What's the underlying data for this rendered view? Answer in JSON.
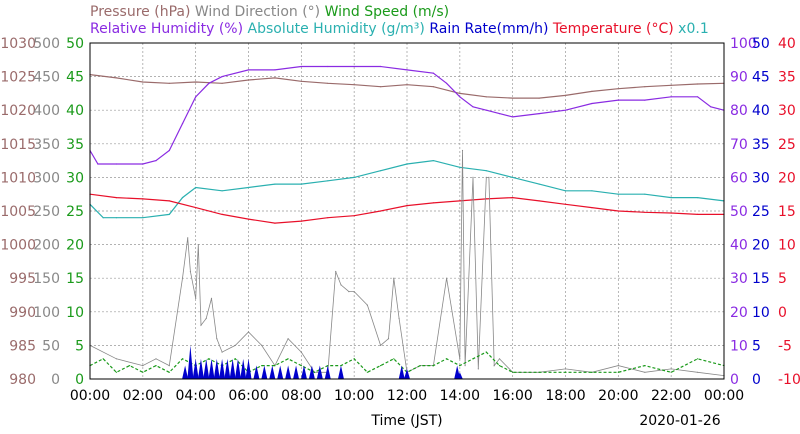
{
  "chart_data": {
    "type": "line",
    "legend_row1": [
      {
        "text": "Pressure (hPa)",
        "color": "#9a6b6b"
      },
      {
        "text": "Wind Direction (°)",
        "color": "#888888"
      },
      {
        "text": "Wind Speed (m/s)",
        "color": "#1a9a1a"
      }
    ],
    "legend_row2": [
      {
        "text": "Relative Humidity (%)",
        "color": "#8a2be2"
      },
      {
        "text": "Absolute Humidity (g/m³)",
        "color": "#2ab0b0"
      },
      {
        "text": "Rain Rate(mm/h)",
        "color": "#0000cc"
      },
      {
        "text": "Temperature (°C)",
        "color": "#e8102a"
      },
      {
        "text": "x0.1",
        "color": "#2ab0b0"
      }
    ],
    "xlabel": "Time (JST)",
    "date": "2020-01-26",
    "x_ticks": [
      "00:00",
      "02:00",
      "04:00",
      "06:00",
      "08:00",
      "10:00",
      "12:00",
      "14:00",
      "16:00",
      "18:00",
      "20:00",
      "22:00",
      "00:00"
    ],
    "x_range_hours": [
      0,
      24
    ],
    "grid": true,
    "axes": {
      "pressure": {
        "color": "#9a6b6b",
        "ticks": [
          "1030",
          "1025",
          "1020",
          "1015",
          "1010",
          "1005",
          "1000",
          "995",
          "990",
          "985",
          "980"
        ]
      },
      "direction": {
        "color": "#888888",
        "ticks": [
          "500",
          "450",
          "400",
          "350",
          "300",
          "250",
          "200",
          "150",
          "100",
          "50",
          "0"
        ]
      },
      "windspeed": {
        "color": "#1a9a1a",
        "ticks": [
          "50",
          "45",
          "40",
          "35",
          "30",
          "25",
          "20",
          "15",
          "10",
          "5",
          "0"
        ]
      },
      "humidity": {
        "color": "#8a2be2",
        "ticks": [
          "100",
          "90",
          "80",
          "70",
          "60",
          "50",
          "40",
          "30",
          "20",
          "10",
          "0"
        ]
      },
      "rain": {
        "color": "#0000cc",
        "ticks": [
          "50",
          "45",
          "40",
          "35",
          "30",
          "25",
          "20",
          "15",
          "10",
          "5",
          "0"
        ]
      },
      "temperature": {
        "color": "#e8102a",
        "ticks": [
          "40",
          "35",
          "30",
          "25",
          "20",
          "15",
          "10",
          "5",
          "0",
          "-5",
          "-10"
        ]
      }
    },
    "series": [
      {
        "name": "Pressure",
        "color": "#9a6b6b",
        "axis": "pressure",
        "x": [
          0,
          1,
          2,
          3,
          4,
          5,
          6,
          7,
          8,
          9,
          10,
          11,
          12,
          13,
          14,
          15,
          16,
          17,
          18,
          19,
          20,
          21,
          22,
          23,
          24
        ],
        "y": [
          1025.3,
          1024.8,
          1024.2,
          1024.0,
          1024.2,
          1024.0,
          1024.5,
          1024.8,
          1024.3,
          1024.0,
          1023.8,
          1023.5,
          1023.8,
          1023.5,
          1022.5,
          1022.0,
          1021.8,
          1021.8,
          1022.2,
          1022.8,
          1023.2,
          1023.5,
          1023.7,
          1023.9,
          1024.0
        ]
      },
      {
        "name": "Relative Humidity",
        "color": "#8a2be2",
        "axis": "humidity",
        "x": [
          0,
          0.3,
          1,
          2,
          2.5,
          3,
          3.5,
          4,
          4.5,
          5,
          6,
          7,
          8,
          9,
          10,
          11,
          12,
          13,
          13.5,
          14,
          14.5,
          15,
          15.5,
          16,
          17,
          18,
          19,
          20,
          21,
          22,
          23,
          23.5,
          24
        ],
        "y": [
          68,
          64,
          64,
          64,
          65,
          68,
          76,
          84,
          88,
          90,
          92,
          92,
          93,
          93,
          93,
          93,
          92,
          91,
          88,
          84,
          81,
          80,
          79,
          78,
          79,
          80,
          82,
          83,
          83,
          84,
          84,
          81,
          80
        ]
      },
      {
        "name": "Absolute Humidity",
        "color": "#2ab0b0",
        "axis": "humidity",
        "x": [
          0,
          0.5,
          1,
          2,
          3,
          3.5,
          4,
          5,
          6,
          7,
          8,
          9,
          10,
          11,
          12,
          13,
          14,
          15,
          16,
          17,
          18,
          19,
          20,
          21,
          22,
          23,
          24
        ],
        "y": [
          52,
          48,
          48,
          48,
          49,
          54,
          57,
          56,
          57,
          58,
          58,
          59,
          60,
          62,
          64,
          65,
          63,
          62,
          60,
          58,
          56,
          56,
          55,
          55,
          54,
          54,
          53
        ]
      },
      {
        "name": "Temperature",
        "color": "#e8102a",
        "axis": "temperature",
        "x": [
          0,
          1,
          2,
          3,
          4,
          5,
          6,
          7,
          8,
          9,
          10,
          11,
          12,
          13,
          14,
          15,
          16,
          17,
          18,
          19,
          20,
          21,
          22,
          23,
          24
        ],
        "y": [
          17.5,
          17.0,
          16.8,
          16.5,
          15.5,
          14.5,
          13.8,
          13.2,
          13.5,
          14.0,
          14.3,
          15.0,
          15.8,
          16.2,
          16.5,
          16.8,
          17.0,
          16.5,
          16.0,
          15.5,
          15.0,
          14.8,
          14.7,
          14.5,
          14.5
        ]
      },
      {
        "name": "Wind Direction",
        "color": "#888888",
        "axis": "direction",
        "style": "thin",
        "x": [
          0,
          1,
          2,
          2.5,
          3,
          3.5,
          3.7,
          3.8,
          4.0,
          4.1,
          4.2,
          4.4,
          4.6,
          4.8,
          5,
          5.5,
          6,
          6.5,
          7,
          7.5,
          8,
          8.5,
          9,
          9.3,
          9.5,
          9.8,
          10,
          10.5,
          11,
          11.3,
          11.5,
          11.7,
          12,
          12.5,
          13,
          13.5,
          14,
          14.1,
          14.2,
          14.5,
          14.7,
          15,
          15.1,
          15.3,
          15.5,
          16,
          17,
          18,
          19,
          20,
          21,
          22,
          23,
          24
        ],
        "y": [
          50,
          30,
          20,
          30,
          20,
          150,
          210,
          160,
          120,
          200,
          80,
          90,
          120,
          60,
          40,
          50,
          70,
          50,
          20,
          60,
          40,
          10,
          10,
          160,
          140,
          130,
          130,
          110,
          50,
          60,
          150,
          90,
          10,
          20,
          20,
          150,
          30,
          340,
          20,
          300,
          15,
          300,
          300,
          20,
          30,
          10,
          10,
          15,
          10,
          20,
          10,
          15,
          10,
          5
        ]
      },
      {
        "name": "Wind Speed",
        "color": "#1a9a1a",
        "axis": "windspeed",
        "style": "dashed",
        "x": [
          0,
          0.5,
          1,
          1.5,
          2,
          2.5,
          3,
          3.5,
          4,
          4.5,
          5,
          5.5,
          6,
          6.5,
          7,
          7.5,
          8,
          8.5,
          9,
          9.5,
          10,
          10.5,
          11,
          11.5,
          12,
          12.5,
          13,
          13.5,
          14,
          14.5,
          15,
          15.5,
          16,
          17,
          18,
          19,
          20,
          21,
          22,
          23,
          24
        ],
        "y": [
          2,
          3,
          1,
          2,
          1,
          2,
          1,
          3,
          2,
          3,
          2,
          3,
          1,
          2,
          2,
          3,
          2,
          1,
          2,
          2,
          3,
          1,
          2,
          3,
          1,
          2,
          2,
          3,
          2,
          3,
          4,
          2,
          1,
          1,
          1,
          1,
          1,
          2,
          1,
          3,
          2
        ]
      },
      {
        "name": "Rain Rate",
        "color": "#0000cc",
        "axis": "rain",
        "style": "fill",
        "x": [
          3.6,
          3.8,
          4.0,
          4.2,
          4.4,
          4.6,
          4.8,
          5.0,
          5.2,
          5.4,
          5.6,
          5.8,
          6.0,
          6.3,
          6.6,
          6.9,
          7.2,
          7.5,
          7.8,
          8.1,
          8.4,
          8.7,
          9.0,
          9.5,
          11.8,
          12.0,
          13.9,
          14.0
        ],
        "y": [
          2,
          5,
          3,
          3,
          3,
          3,
          3,
          3,
          3,
          3,
          3,
          3,
          3,
          2,
          2,
          2,
          2,
          2,
          2,
          2,
          2,
          2,
          2,
          2,
          2,
          1.5,
          2,
          1
        ]
      }
    ]
  }
}
